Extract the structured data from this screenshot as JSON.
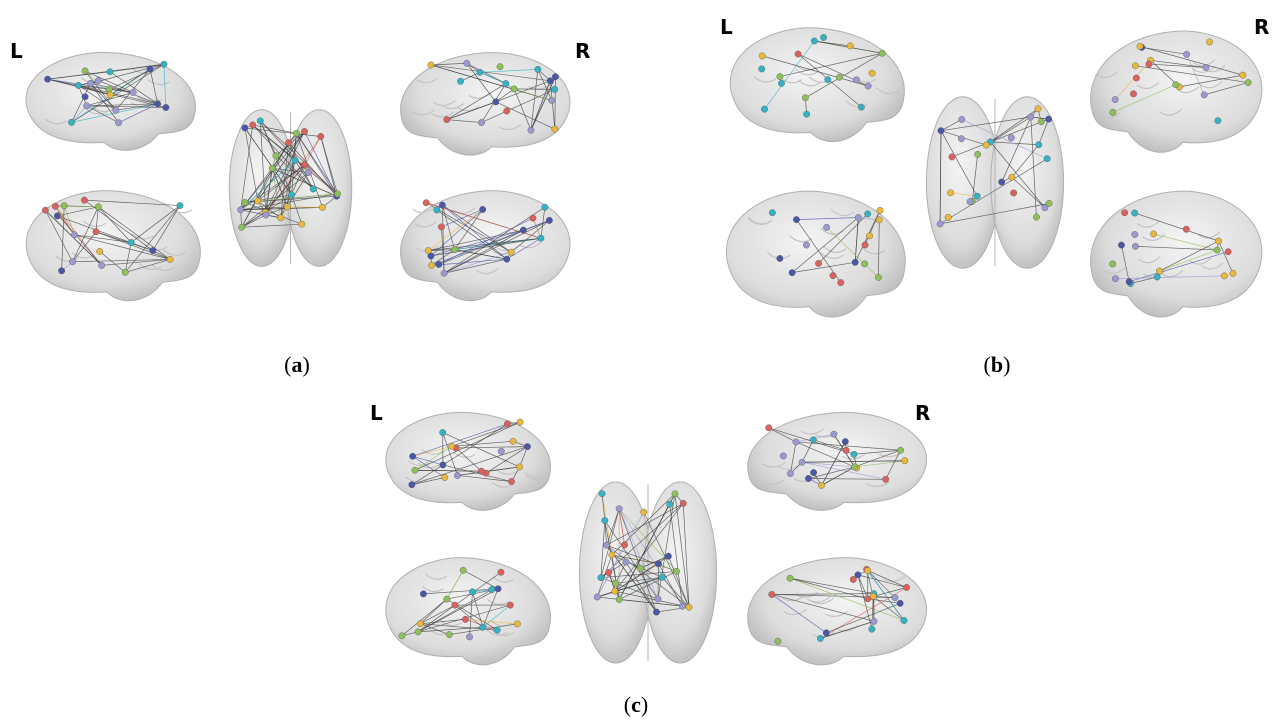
{
  "panels": [
    {
      "left_label": "L",
      "right_label": "R",
      "caption": [
        "(",
        "a",
        ")"
      ]
    },
    {
      "left_label": "L",
      "right_label": "R",
      "caption": [
        "(",
        "b",
        ")"
      ]
    },
    {
      "left_label": "L",
      "right_label": "R",
      "caption": [
        "(",
        "c",
        ")"
      ]
    }
  ]
}
